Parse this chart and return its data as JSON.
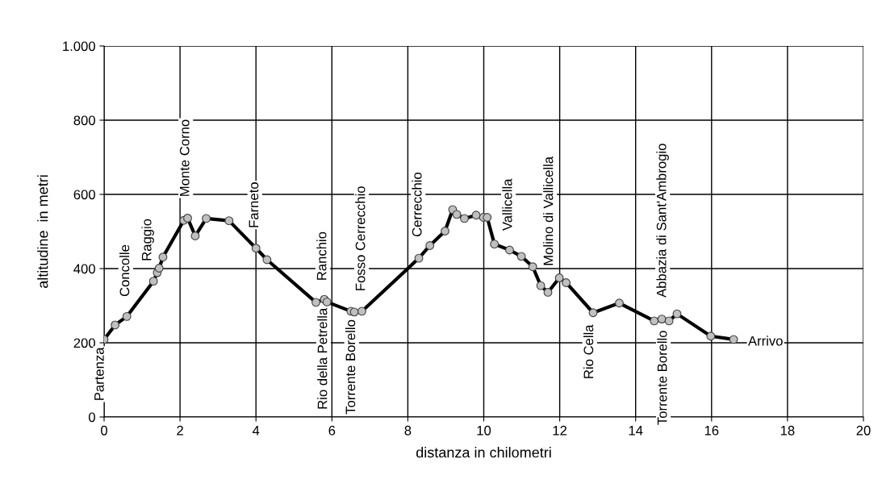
{
  "chart_data": {
    "type": "line",
    "xlabel": "distanza in chilometri",
    "ylabel": "altitudine  in metri",
    "x": [
      0,
      0.29,
      0.6,
      1.3,
      1.4,
      1.45,
      1.55,
      2.1,
      2.2,
      2.4,
      2.69,
      3.29,
      4.0,
      4.29,
      5.58,
      5.8,
      5.87,
      6.5,
      6.59,
      6.79,
      8.29,
      8.58,
      8.98,
      9.18,
      9.29,
      9.49,
      9.8,
      9.99,
      10.09,
      10.28,
      10.68,
      10.99,
      11.29,
      11.5,
      11.69,
      11.99,
      12.17,
      12.88,
      13.57,
      14.49,
      14.69,
      14.88,
      15.09,
      15.98,
      16.58
    ],
    "series": [
      {
        "color": "#000000",
        "values": [
          209,
          248,
          271,
          366,
          389,
          401,
          431,
          530,
          536,
          488,
          535,
          529,
          455,
          424,
          309,
          317,
          310,
          285,
          283,
          285,
          428,
          462,
          501,
          559,
          546,
          535,
          544,
          538,
          538,
          466,
          450,
          433,
          405,
          354,
          336,
          375,
          362,
          281,
          307,
          259,
          264,
          259,
          278,
          218,
          209
        ]
      }
    ],
    "xlim": [
      0,
      20
    ],
    "xticks": [
      0,
      2,
      4,
      6,
      8,
      10,
      12,
      14,
      16,
      18,
      20
    ],
    "ylim": [
      0,
      1000
    ],
    "yticks": [
      0,
      200,
      400,
      600,
      800,
      {
        "value": 1000,
        "label": "1.000"
      }
    ],
    "grid": true,
    "marker": "circle",
    "line_style": "solid",
    "annotations": [
      {
        "text": "Partenza",
        "x": 0,
        "y": 209
      },
      {
        "text": "Concolle",
        "x": 0.6,
        "y": 271
      },
      {
        "text": "Raggio",
        "x": 1.3,
        "y": 366
      },
      {
        "text": "Monte Corno",
        "x": 2.2,
        "y": 536
      },
      {
        "text": "Farneto",
        "x": 4.0,
        "y": 455
      },
      {
        "text": "Ranchio",
        "x": 5.8,
        "y": 317
      },
      {
        "text": "Rio della Petrella",
        "x": 5.8,
        "y": 317
      },
      {
        "text": "Torrente Borello",
        "x": 6.5,
        "y": 285
      },
      {
        "text": "Fosso Cerrecchio",
        "x": 6.79,
        "y": 285
      },
      {
        "text": "Cerrecchio",
        "x": 8.29,
        "y": 428
      },
      {
        "text": "Vallicella",
        "x": 10.68,
        "y": 450
      },
      {
        "text": "Molino di Vallicella",
        "x": 11.69,
        "y": 336
      },
      {
        "text": "Rio Cella",
        "x": 12.88,
        "y": 281
      },
      {
        "text": "Torrente Borello",
        "x": 14.69,
        "y": 264
      },
      {
        "text": "Abbazia di Sant'Ambrogio",
        "x": 14.69,
        "y": 264
      },
      {
        "text": "Arrivo",
        "x": 16.58,
        "y": 209
      }
    ]
  }
}
